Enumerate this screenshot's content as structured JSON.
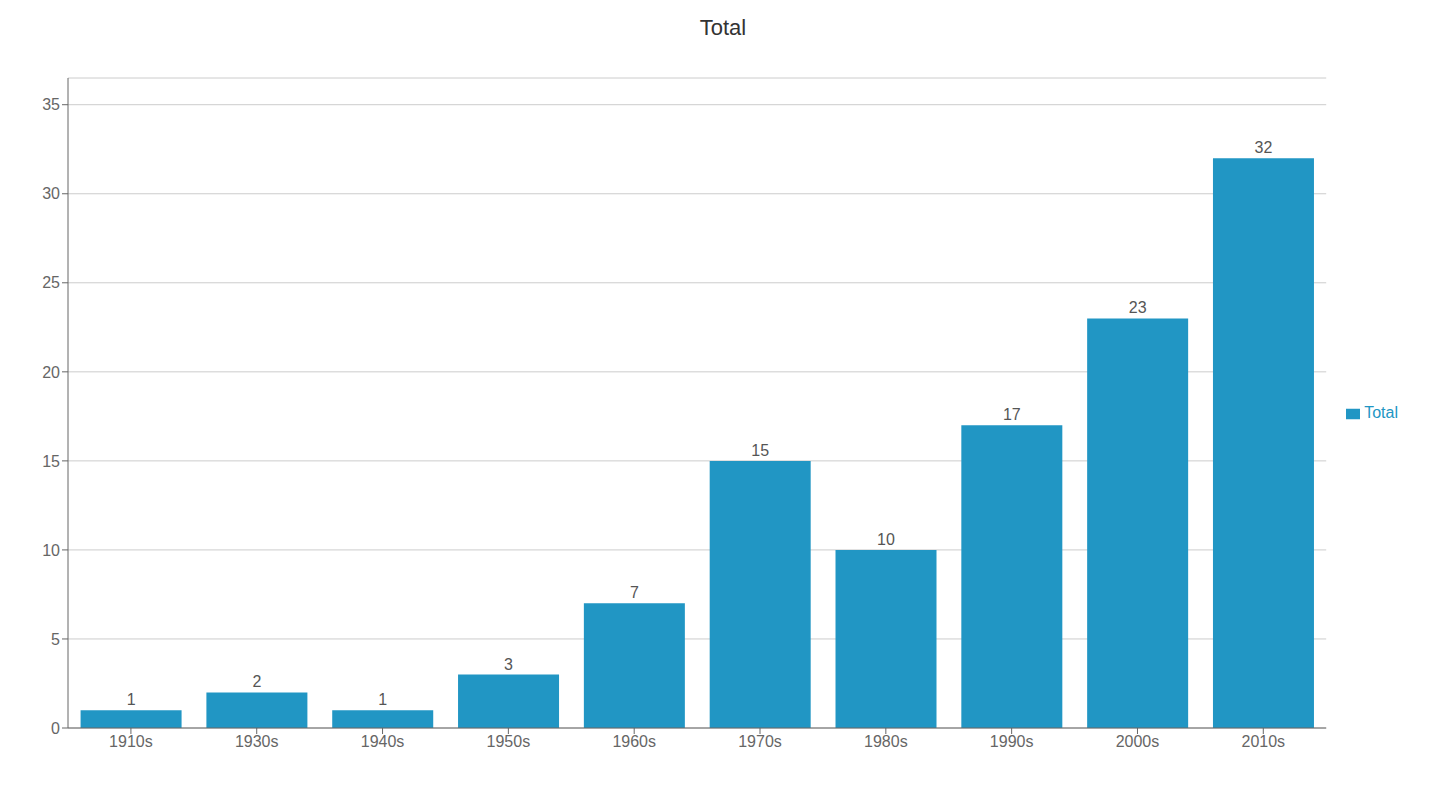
{
  "chart_data": {
    "type": "bar",
    "title": "Total",
    "categories": [
      "1910s",
      "1930s",
      "1940s",
      "1950s",
      "1960s",
      "1970s",
      "1980s",
      "1990s",
      "2000s",
      "2010s"
    ],
    "series": [
      {
        "name": "Total",
        "color": "#2196C4",
        "values": [
          1,
          2,
          1,
          3,
          7,
          15,
          10,
          17,
          23,
          32
        ]
      }
    ],
    "ylim": [
      0,
      36.5
    ],
    "yticks": [
      0,
      5,
      10,
      15,
      20,
      25,
      30,
      35
    ],
    "grid": true,
    "legend": "right",
    "data_labels": true
  }
}
